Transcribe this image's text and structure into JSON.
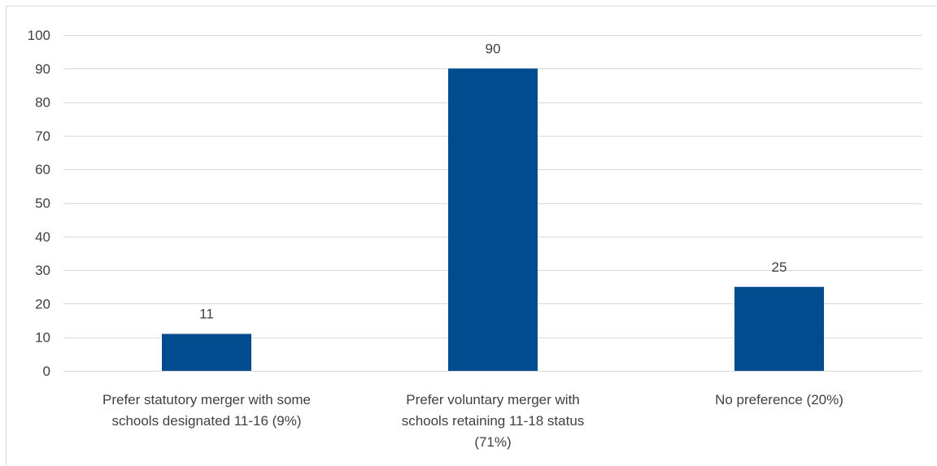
{
  "chart_data": {
    "type": "bar",
    "categories": [
      [
        "Prefer statutory merger with some",
        "schools designated 11-16 (9%)"
      ],
      [
        "Prefer voluntary merger with",
        "schools retaining 11-18 status",
        "(71%)"
      ],
      [
        "No preference (20%)"
      ]
    ],
    "values": [
      11,
      90,
      25
    ],
    "data_labels": [
      "11",
      "90",
      "25"
    ],
    "ylim": [
      0,
      100
    ],
    "yticks": [
      0,
      10,
      20,
      30,
      40,
      50,
      60,
      70,
      80,
      90,
      100
    ],
    "grid": true,
    "legend": "none",
    "bar_color": "#004c8e",
    "grid_color": "#d9d9d9",
    "text_color": "#404040"
  }
}
